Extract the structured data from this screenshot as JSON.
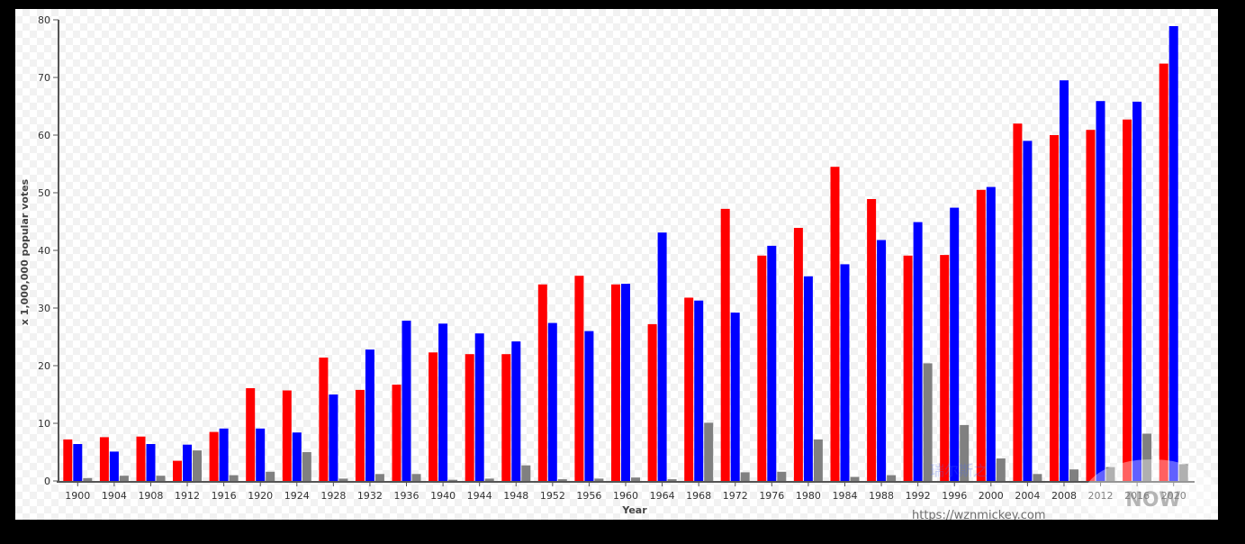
{
  "chart_data": {
    "type": "bar",
    "title": "",
    "xlabel": "Year",
    "ylabel": "x 1,000,000 popular votes",
    "ylim": [
      0,
      80
    ],
    "yticks": [
      0,
      10,
      20,
      30,
      40,
      50,
      60,
      70,
      80
    ],
    "grid": false,
    "legend": "none",
    "categories": [
      "1900",
      "1904",
      "1908",
      "1912",
      "1916",
      "1920",
      "1924",
      "1928",
      "1932",
      "1936",
      "1940",
      "1944",
      "1948",
      "1952",
      "1956",
      "1960",
      "1964",
      "1968",
      "1972",
      "1976",
      "1980",
      "1984",
      "1988",
      "1992",
      "1996",
      "2000",
      "2004",
      "2008",
      "2012",
      "2016",
      "2020"
    ],
    "series": [
      {
        "color": "#ff0000",
        "values": [
          7.2,
          7.6,
          7.7,
          3.5,
          8.5,
          16.1,
          15.7,
          21.4,
          15.8,
          16.7,
          22.3,
          22.0,
          22.0,
          34.1,
          35.6,
          34.1,
          27.2,
          31.8,
          47.2,
          39.1,
          43.9,
          54.5,
          48.9,
          39.1,
          39.2,
          50.5,
          62.0,
          60.0,
          60.9,
          62.7,
          72.4
        ]
      },
      {
        "color": "#0000ff",
        "values": [
          6.4,
          5.1,
          6.4,
          6.3,
          9.1,
          9.1,
          8.4,
          15.0,
          22.8,
          27.8,
          27.3,
          25.6,
          24.2,
          27.4,
          26.0,
          34.2,
          43.1,
          31.3,
          29.2,
          40.8,
          35.5,
          37.6,
          41.8,
          44.9,
          47.4,
          51.0,
          59.0,
          69.5,
          65.9,
          65.8,
          78.9
        ]
      },
      {
        "color": "#808080",
        "values": [
          0.5,
          0.9,
          0.9,
          5.3,
          1.0,
          1.6,
          5.0,
          0.4,
          1.2,
          1.2,
          0.2,
          0.4,
          2.7,
          0.3,
          0.4,
          0.6,
          0.3,
          10.1,
          1.5,
          1.6,
          7.2,
          0.7,
          1.0,
          20.4,
          9.7,
          3.9,
          1.2,
          2.0,
          2.4,
          8.2,
          2.9
        ]
      }
    ]
  },
  "watermark": {
    "url": "https://wznmickey.com",
    "logo_text": "NOW",
    "cjk_text": "瑞尔斯之"
  }
}
